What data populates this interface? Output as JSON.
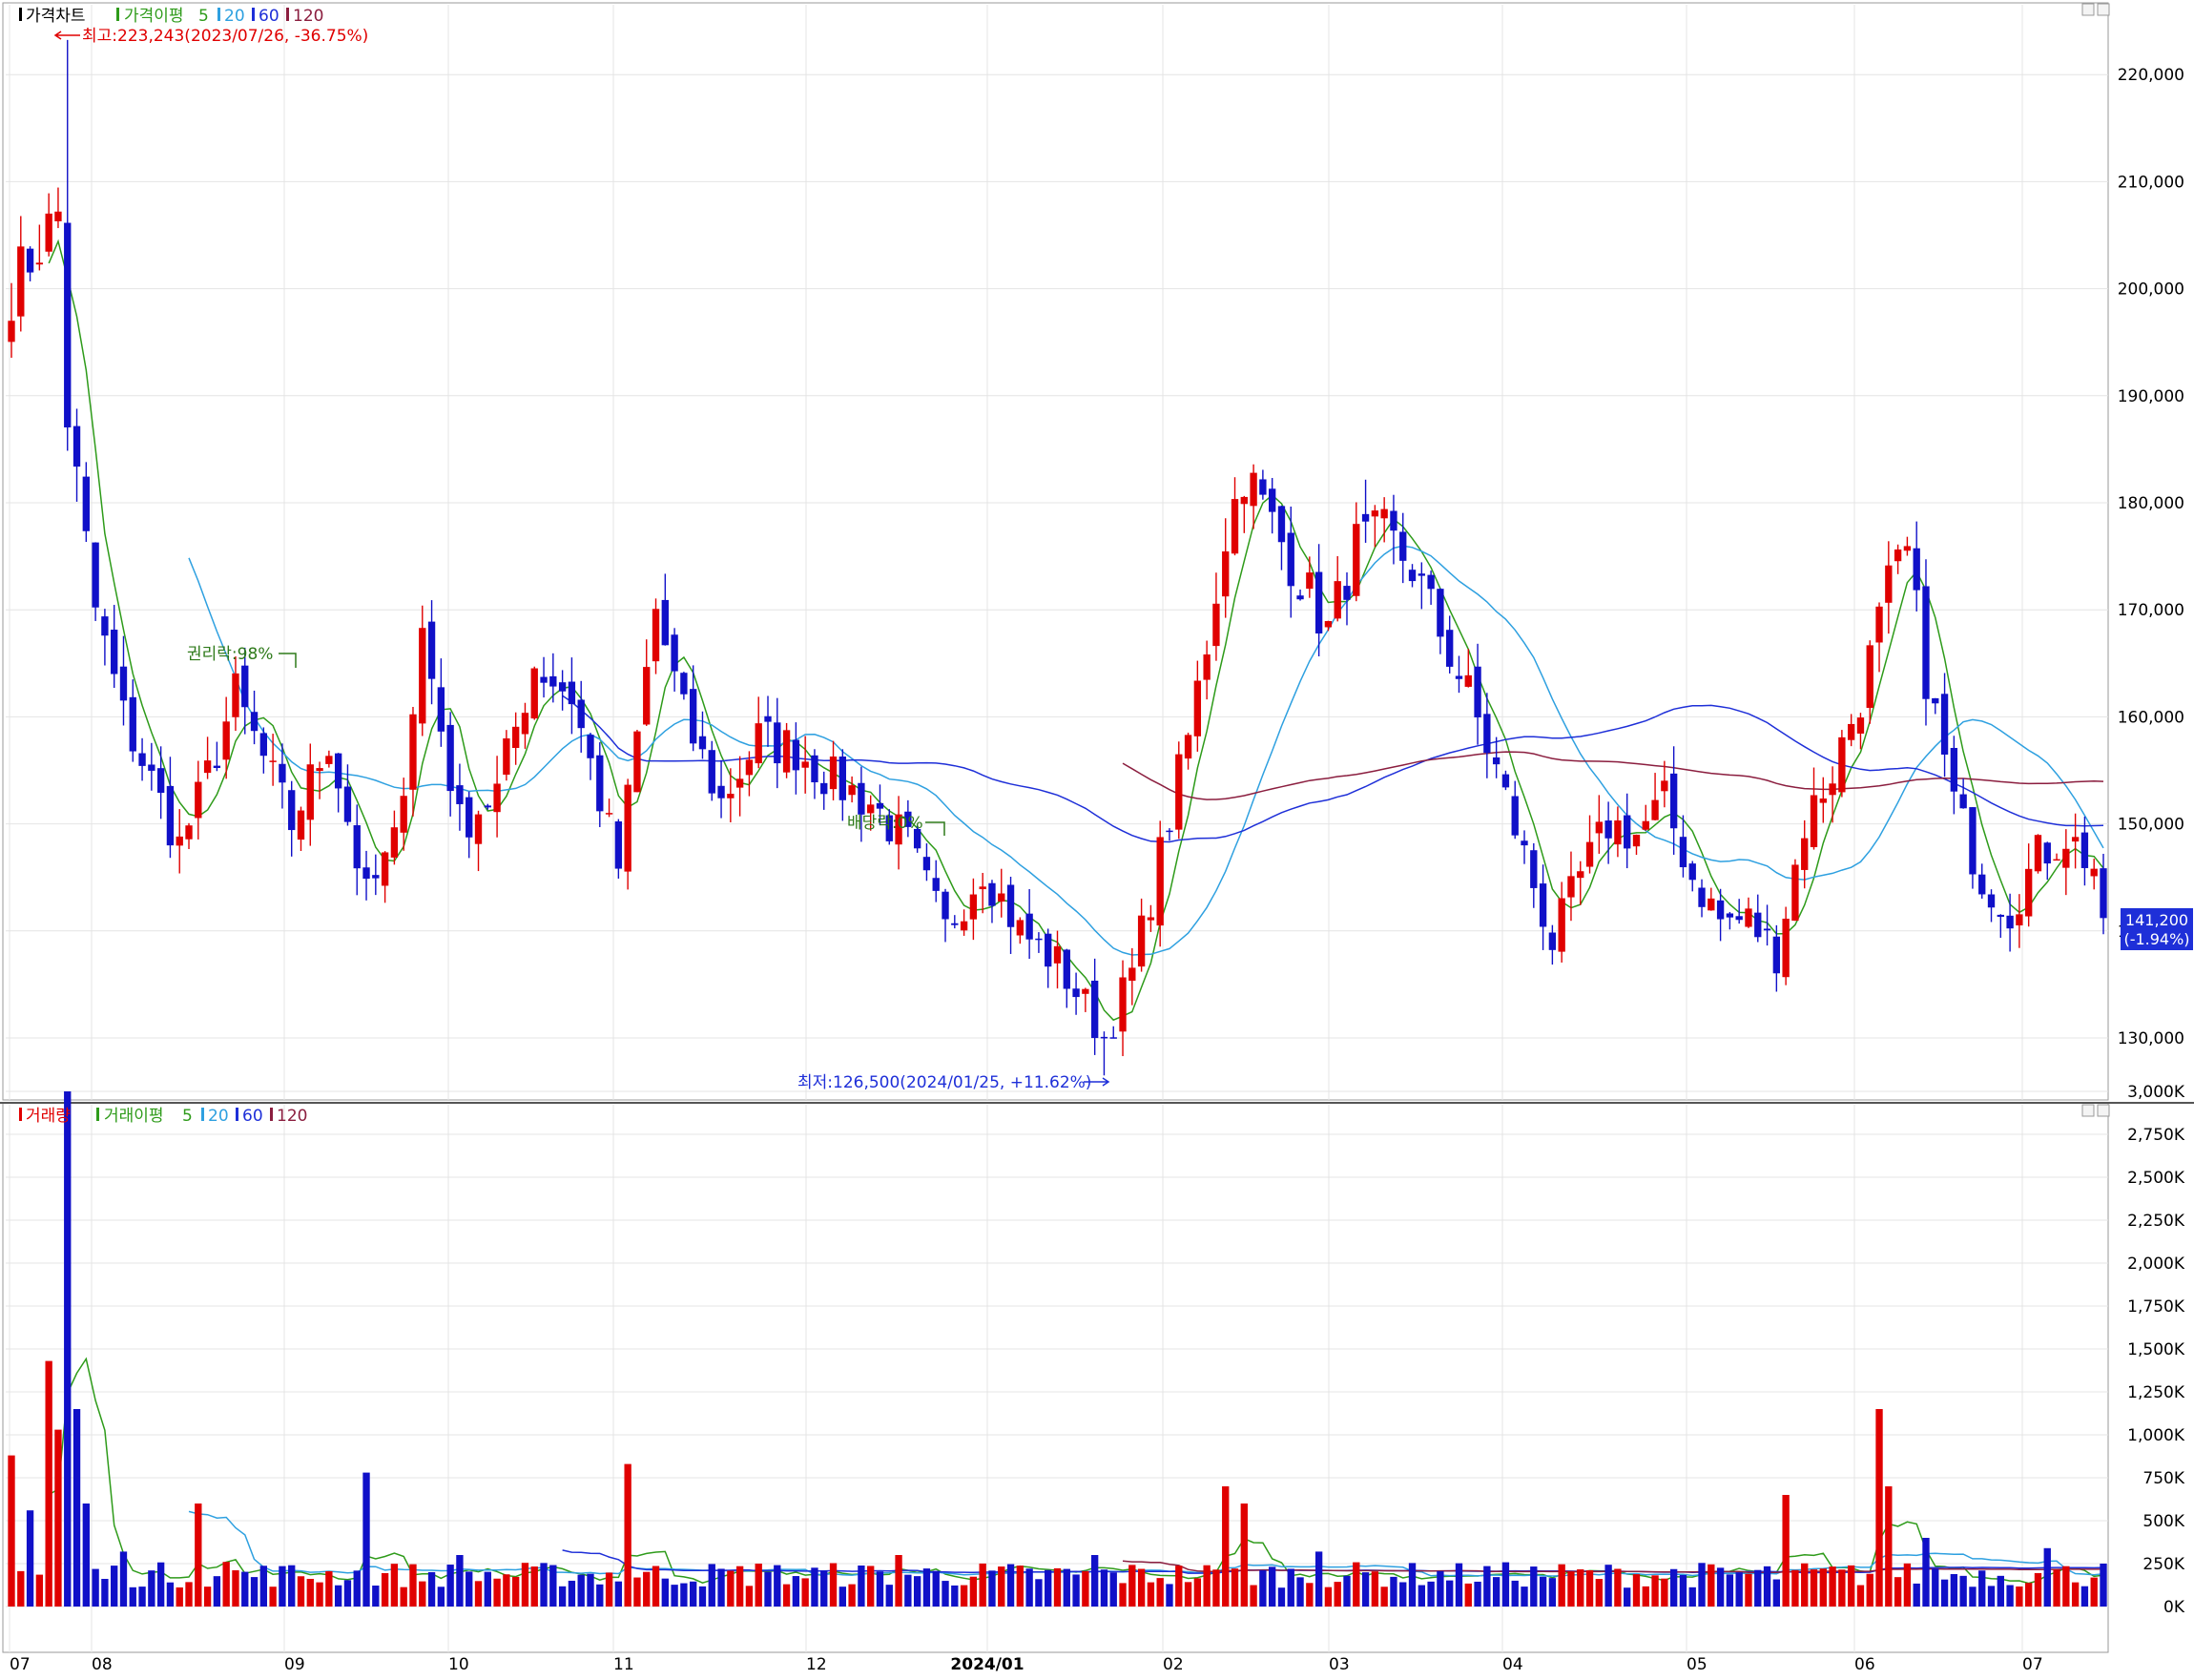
{
  "price_panel": {
    "legend": {
      "title": "가격차트",
      "ma_label": "가격이평",
      "periods": [
        "5",
        "20",
        "60",
        "120"
      ]
    },
    "high_annotation": "최고:223,243(2023/07/26, -36.75%)",
    "low_annotation": "최저:126,500(2024/01/25, +11.62%)",
    "event_rights": "권리락:98%",
    "event_dividend": "배당락:0%",
    "last_price": "141,200",
    "last_change": "(-1.94%)"
  },
  "volume_panel": {
    "legend": {
      "title": "거래량",
      "ma_label": "거래이평",
      "periods": [
        "5",
        "20",
        "60",
        "120"
      ]
    }
  },
  "x_axis": {
    "labels": [
      "07",
      "08",
      "09",
      "10",
      "11",
      "12",
      "2024/01",
      "02",
      "03",
      "04",
      "05",
      "06",
      "07"
    ]
  },
  "colors": {
    "up": "#e00000",
    "down": "#1010c8",
    "ma5": "#2e9b1a",
    "ma20": "#2ea0e0",
    "ma60": "#1e2fd8",
    "ma120": "#8b1e3f",
    "grid": "#e4e4e4"
  },
  "chart_data": [
    {
      "type": "candlestick",
      "title": "가격차트",
      "ylim": [
        122000,
        226000
      ],
      "y_ticks": [
        "130,000",
        "140,000",
        "150,000",
        "160,000",
        "170,000",
        "180,000",
        "190,000",
        "200,000",
        "210,000",
        "220,000"
      ],
      "x_period": [
        "2023/07",
        "2024/07"
      ],
      "series": [
        {
          "name": "가격",
          "representative_closes": [
            [
              0,
              200000
            ],
            [
              5,
              207000
            ],
            [
              6,
              188000
            ],
            [
              9,
              170000
            ],
            [
              12,
              160000
            ],
            [
              18,
              148000
            ],
            [
              20,
              152000
            ],
            [
              24,
              162000
            ],
            [
              30,
              150000
            ],
            [
              34,
              158000
            ],
            [
              38,
              143000
            ],
            [
              41,
              148000
            ],
            [
              44,
              168000
            ],
            [
              48,
              150000
            ],
            [
              52,
              153000
            ],
            [
              56,
              165000
            ],
            [
              60,
              162000
            ],
            [
              65,
              146000
            ],
            [
              69,
              170000
            ],
            [
              72,
              160000
            ],
            [
              76,
              152000
            ],
            [
              80,
              158000
            ],
            [
              84,
              157000
            ],
            [
              88,
              154000
            ],
            [
              92,
              152000
            ],
            [
              96,
              148000
            ],
            [
              100,
              140000
            ],
            [
              104,
              146000
            ],
            [
              108,
              140000
            ],
            [
              112,
              137000
            ],
            [
              115,
              133000
            ],
            [
              117,
              130000
            ],
            [
              120,
              136000
            ],
            [
              123,
              147000
            ],
            [
              126,
              158000
            ],
            [
              128,
              167000
            ],
            [
              130,
              177000
            ],
            [
              132,
              183000
            ],
            [
              135,
              178000
            ],
            [
              138,
              173000
            ],
            [
              141,
              168000
            ],
            [
              144,
              176000
            ],
            [
              147,
              177000
            ],
            [
              150,
              174000
            ],
            [
              153,
              168000
            ],
            [
              156,
              162000
            ],
            [
              159,
              155000
            ],
            [
              162,
              147000
            ],
            [
              165,
              139000
            ],
            [
              168,
              145000
            ],
            [
              171,
              150000
            ],
            [
              174,
              149000
            ],
            [
              177,
              152000
            ],
            [
              180,
              145000
            ],
            [
              183,
              141000
            ],
            [
              186,
              141000
            ],
            [
              189,
              138000
            ],
            [
              192,
              150000
            ],
            [
              195,
              155000
            ],
            [
              198,
              162000
            ],
            [
              201,
              172000
            ],
            [
              203,
              175000
            ],
            [
              205,
              164000
            ],
            [
              208,
              152000
            ],
            [
              211,
              145000
            ],
            [
              214,
              142000
            ],
            [
              217,
              147000
            ],
            [
              220,
              149000
            ],
            [
              223,
              146000
            ],
            [
              224,
              141200
            ]
          ]
        }
      ],
      "moving_averages": [
        "5",
        "20",
        "60",
        "120"
      ],
      "high": {
        "value": 223243,
        "date": "2023/07/26"
      },
      "low": {
        "value": 126500,
        "date": "2024/01/25"
      },
      "last": 141200
    },
    {
      "type": "bar",
      "title": "거래량",
      "ylim": [
        0,
        3100
      ],
      "unit": "K",
      "y_ticks": [
        "0K",
        "250K",
        "500K",
        "750K",
        "1,000K",
        "1,250K",
        "1,500K",
        "1,750K",
        "2,000K",
        "2,250K",
        "2,500K",
        "2,750K",
        "3,000K"
      ],
      "series": [
        {
          "name": "거래량",
          "representative_volumes_k": [
            [
              0,
              880
            ],
            [
              2,
              560
            ],
            [
              4,
              1430
            ],
            [
              5,
              1030
            ],
            [
              6,
              3000
            ],
            [
              7,
              1150
            ],
            [
              8,
              600
            ],
            [
              12,
              320
            ],
            [
              20,
              600
            ],
            [
              23,
              260
            ],
            [
              38,
              780
            ],
            [
              48,
              300
            ],
            [
              66,
              830
            ],
            [
              80,
              250
            ],
            [
              95,
              300
            ],
            [
              116,
              300
            ],
            [
              130,
              700
            ],
            [
              132,
              600
            ],
            [
              140,
              320
            ],
            [
              190,
              650
            ],
            [
              200,
              1150
            ],
            [
              201,
              700
            ],
            [
              205,
              400
            ],
            [
              218,
              340
            ],
            [
              224,
              250
            ]
          ]
        }
      ],
      "moving_averages": [
        "5",
        "20",
        "60",
        "120"
      ]
    }
  ]
}
